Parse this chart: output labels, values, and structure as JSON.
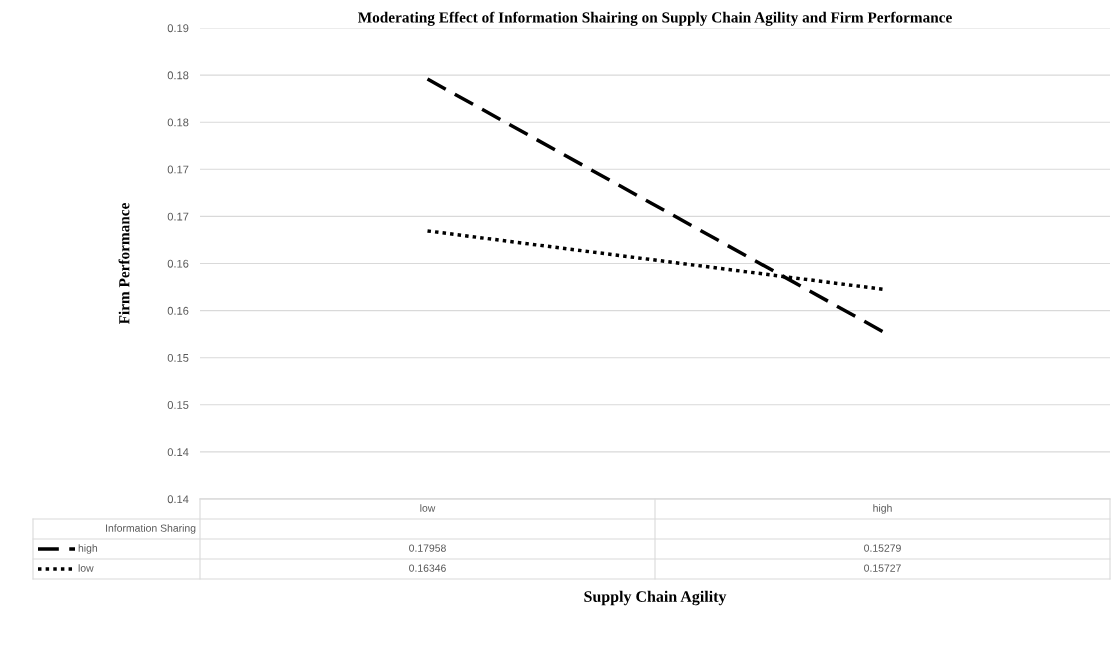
{
  "chart_data": {
    "type": "line",
    "title": "Moderating Effect of Information Shairing on Supply Chain Agility and Firm Performance",
    "xlabel": "Supply Chain Agility",
    "ylabel": "Firm Performance",
    "legend_title": "Information Sharing",
    "categories": [
      "low",
      "high"
    ],
    "series": [
      {
        "name": "high",
        "color": "#000000",
        "values": [
          0.17958,
          0.15279
        ],
        "line_style": "dashed"
      },
      {
        "name": "low",
        "color": "#000000",
        "values": [
          0.16346,
          0.15727
        ],
        "line_style": "dotted"
      }
    ],
    "ylim": [
      0.135,
      0.185
    ],
    "yticks": [
      {
        "value": 0.135,
        "label": "0.14"
      },
      {
        "value": 0.14,
        "label": "0.14"
      },
      {
        "value": 0.145,
        "label": "0.15"
      },
      {
        "value": 0.15,
        "label": "0.15"
      },
      {
        "value": 0.155,
        "label": "0.16"
      },
      {
        "value": 0.16,
        "label": "0.16"
      },
      {
        "value": 0.165,
        "label": "0.17"
      },
      {
        "value": 0.17,
        "label": "0.17"
      },
      {
        "value": 0.175,
        "label": "0.18"
      },
      {
        "value": 0.18,
        "label": "0.18"
      },
      {
        "value": 0.185,
        "label": "0.19"
      }
    ],
    "grid": "y",
    "legend": "bottom",
    "data_labels": true,
    "marker": "none",
    "tick_labels": "y"
  }
}
